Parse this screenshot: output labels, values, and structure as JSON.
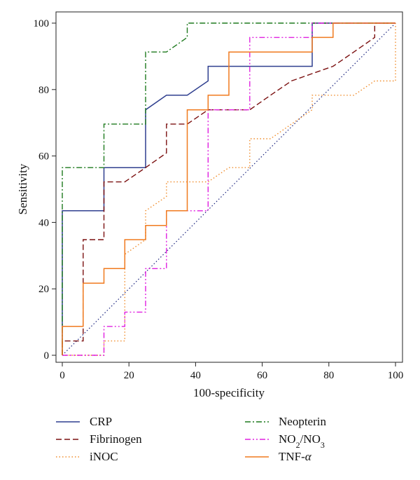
{
  "chart_data": {
    "type": "line",
    "title": "",
    "xlabel": "100-specificity",
    "ylabel": "Sensitivity",
    "xlim": [
      0,
      100
    ],
    "ylim": [
      0,
      100
    ],
    "x_ticks": [
      "0",
      "20",
      "40",
      "60",
      "80",
      "100"
    ],
    "y_ticks": [
      "0",
      "20",
      "40",
      "60",
      "80",
      "100"
    ],
    "grid": false,
    "legend_position": "bottom",
    "reference_line": {
      "color": "#1a237e",
      "style": "dotted",
      "points": [
        [
          0,
          0
        ],
        [
          100,
          100
        ]
      ]
    },
    "series": [
      {
        "name": "CRP",
        "label_parts": [
          [
            "CRP",
            ""
          ]
        ],
        "color": "#2f3f8f",
        "style": "solid",
        "points": [
          [
            0,
            0
          ],
          [
            0,
            43.5
          ],
          [
            12.5,
            43.5
          ],
          [
            12.5,
            56.5
          ],
          [
            25,
            56.5
          ],
          [
            25,
            73.9
          ],
          [
            31.25,
            78.3
          ],
          [
            37.5,
            78.3
          ],
          [
            43.75,
            82.6
          ],
          [
            43.75,
            87
          ],
          [
            75,
            87
          ],
          [
            75,
            100
          ],
          [
            100,
            100
          ]
        ]
      },
      {
        "name": "Fibrinogen",
        "label_parts": [
          [
            "Fibrinogen",
            ""
          ]
        ],
        "color": "#7b1010",
        "style": "dashed",
        "points": [
          [
            0,
            0
          ],
          [
            0,
            4.3
          ],
          [
            6.25,
            4.3
          ],
          [
            6.25,
            34.8
          ],
          [
            12.5,
            34.8
          ],
          [
            12.5,
            52.2
          ],
          [
            18.75,
            52.2
          ],
          [
            25,
            56.5
          ],
          [
            31.25,
            60.9
          ],
          [
            31.25,
            69.6
          ],
          [
            37.5,
            69.6
          ],
          [
            43.75,
            73.9
          ],
          [
            56.25,
            73.9
          ],
          [
            62.5,
            78.3
          ],
          [
            68.75,
            82.6
          ],
          [
            81.25,
            87
          ],
          [
            87.5,
            91.3
          ],
          [
            93.75,
            95.7
          ],
          [
            93.75,
            100
          ],
          [
            100,
            100
          ]
        ]
      },
      {
        "name": "iNOC",
        "label_parts": [
          [
            "iNOC",
            ""
          ]
        ],
        "color": "#f08c2a",
        "style": "dotted",
        "points": [
          [
            0,
            0
          ],
          [
            12.5,
            0
          ],
          [
            12.5,
            4.3
          ],
          [
            18.75,
            4.3
          ],
          [
            18.75,
            30.4
          ],
          [
            25,
            34.8
          ],
          [
            25,
            43.5
          ],
          [
            31.25,
            47.8
          ],
          [
            31.25,
            52.2
          ],
          [
            43.75,
            52.2
          ],
          [
            50,
            56.5
          ],
          [
            56.25,
            56.5
          ],
          [
            56.25,
            65.2
          ],
          [
            62.5,
            65.2
          ],
          [
            68.75,
            69.6
          ],
          [
            75,
            73.9
          ],
          [
            75,
            78.3
          ],
          [
            87.5,
            78.3
          ],
          [
            93.75,
            82.6
          ],
          [
            100,
            82.6
          ],
          [
            100,
            100
          ]
        ]
      },
      {
        "name": "Neopterin",
        "label_parts": [
          [
            "Neopterin",
            ""
          ]
        ],
        "color": "#1e7a1e",
        "style": "dashdot",
        "points": [
          [
            0,
            0
          ],
          [
            0,
            56.5
          ],
          [
            12.5,
            56.5
          ],
          [
            12.5,
            69.6
          ],
          [
            25,
            69.6
          ],
          [
            25,
            91.3
          ],
          [
            31.25,
            91.3
          ],
          [
            37.5,
            95.7
          ],
          [
            37.5,
            100
          ],
          [
            100,
            100
          ]
        ]
      },
      {
        "name": "NO2/NO3",
        "label_parts": [
          [
            "NO",
            ""
          ],
          [
            "2",
            "sub"
          ],
          [
            "/NO",
            ""
          ],
          [
            "3",
            "sub"
          ]
        ],
        "color": "#e020e0",
        "style": "dashdotdot",
        "points": [
          [
            0,
            0
          ],
          [
            12.5,
            0
          ],
          [
            12.5,
            8.7
          ],
          [
            18.75,
            8.7
          ],
          [
            18.75,
            13
          ],
          [
            25,
            13
          ],
          [
            25,
            26.1
          ],
          [
            31.25,
            26.1
          ],
          [
            31.25,
            43.5
          ],
          [
            43.75,
            43.5
          ],
          [
            43.75,
            73.9
          ],
          [
            56.25,
            73.9
          ],
          [
            56.25,
            95.7
          ],
          [
            75,
            95.7
          ],
          [
            75,
            100
          ],
          [
            100,
            100
          ]
        ]
      },
      {
        "name": "TNF-α",
        "label_parts": [
          [
            "TNF-",
            ""
          ],
          [
            "α",
            "italic"
          ]
        ],
        "color": "#f07a1e",
        "style": "solid",
        "points": [
          [
            0,
            0
          ],
          [
            0,
            8.7
          ],
          [
            6.25,
            8.7
          ],
          [
            6.25,
            21.7
          ],
          [
            12.5,
            21.7
          ],
          [
            12.5,
            26.1
          ],
          [
            18.75,
            26.1
          ],
          [
            18.75,
            34.8
          ],
          [
            25,
            34.8
          ],
          [
            25,
            39.1
          ],
          [
            31.25,
            39.1
          ],
          [
            31.25,
            43.5
          ],
          [
            37.5,
            43.5
          ],
          [
            37.5,
            73.9
          ],
          [
            43.75,
            73.9
          ],
          [
            43.75,
            78.3
          ],
          [
            50,
            78.3
          ],
          [
            50,
            91.3
          ],
          [
            75,
            91.3
          ],
          [
            75,
            95.7
          ],
          [
            81.25,
            95.7
          ],
          [
            81.25,
            100
          ],
          [
            100,
            100
          ]
        ]
      }
    ]
  }
}
